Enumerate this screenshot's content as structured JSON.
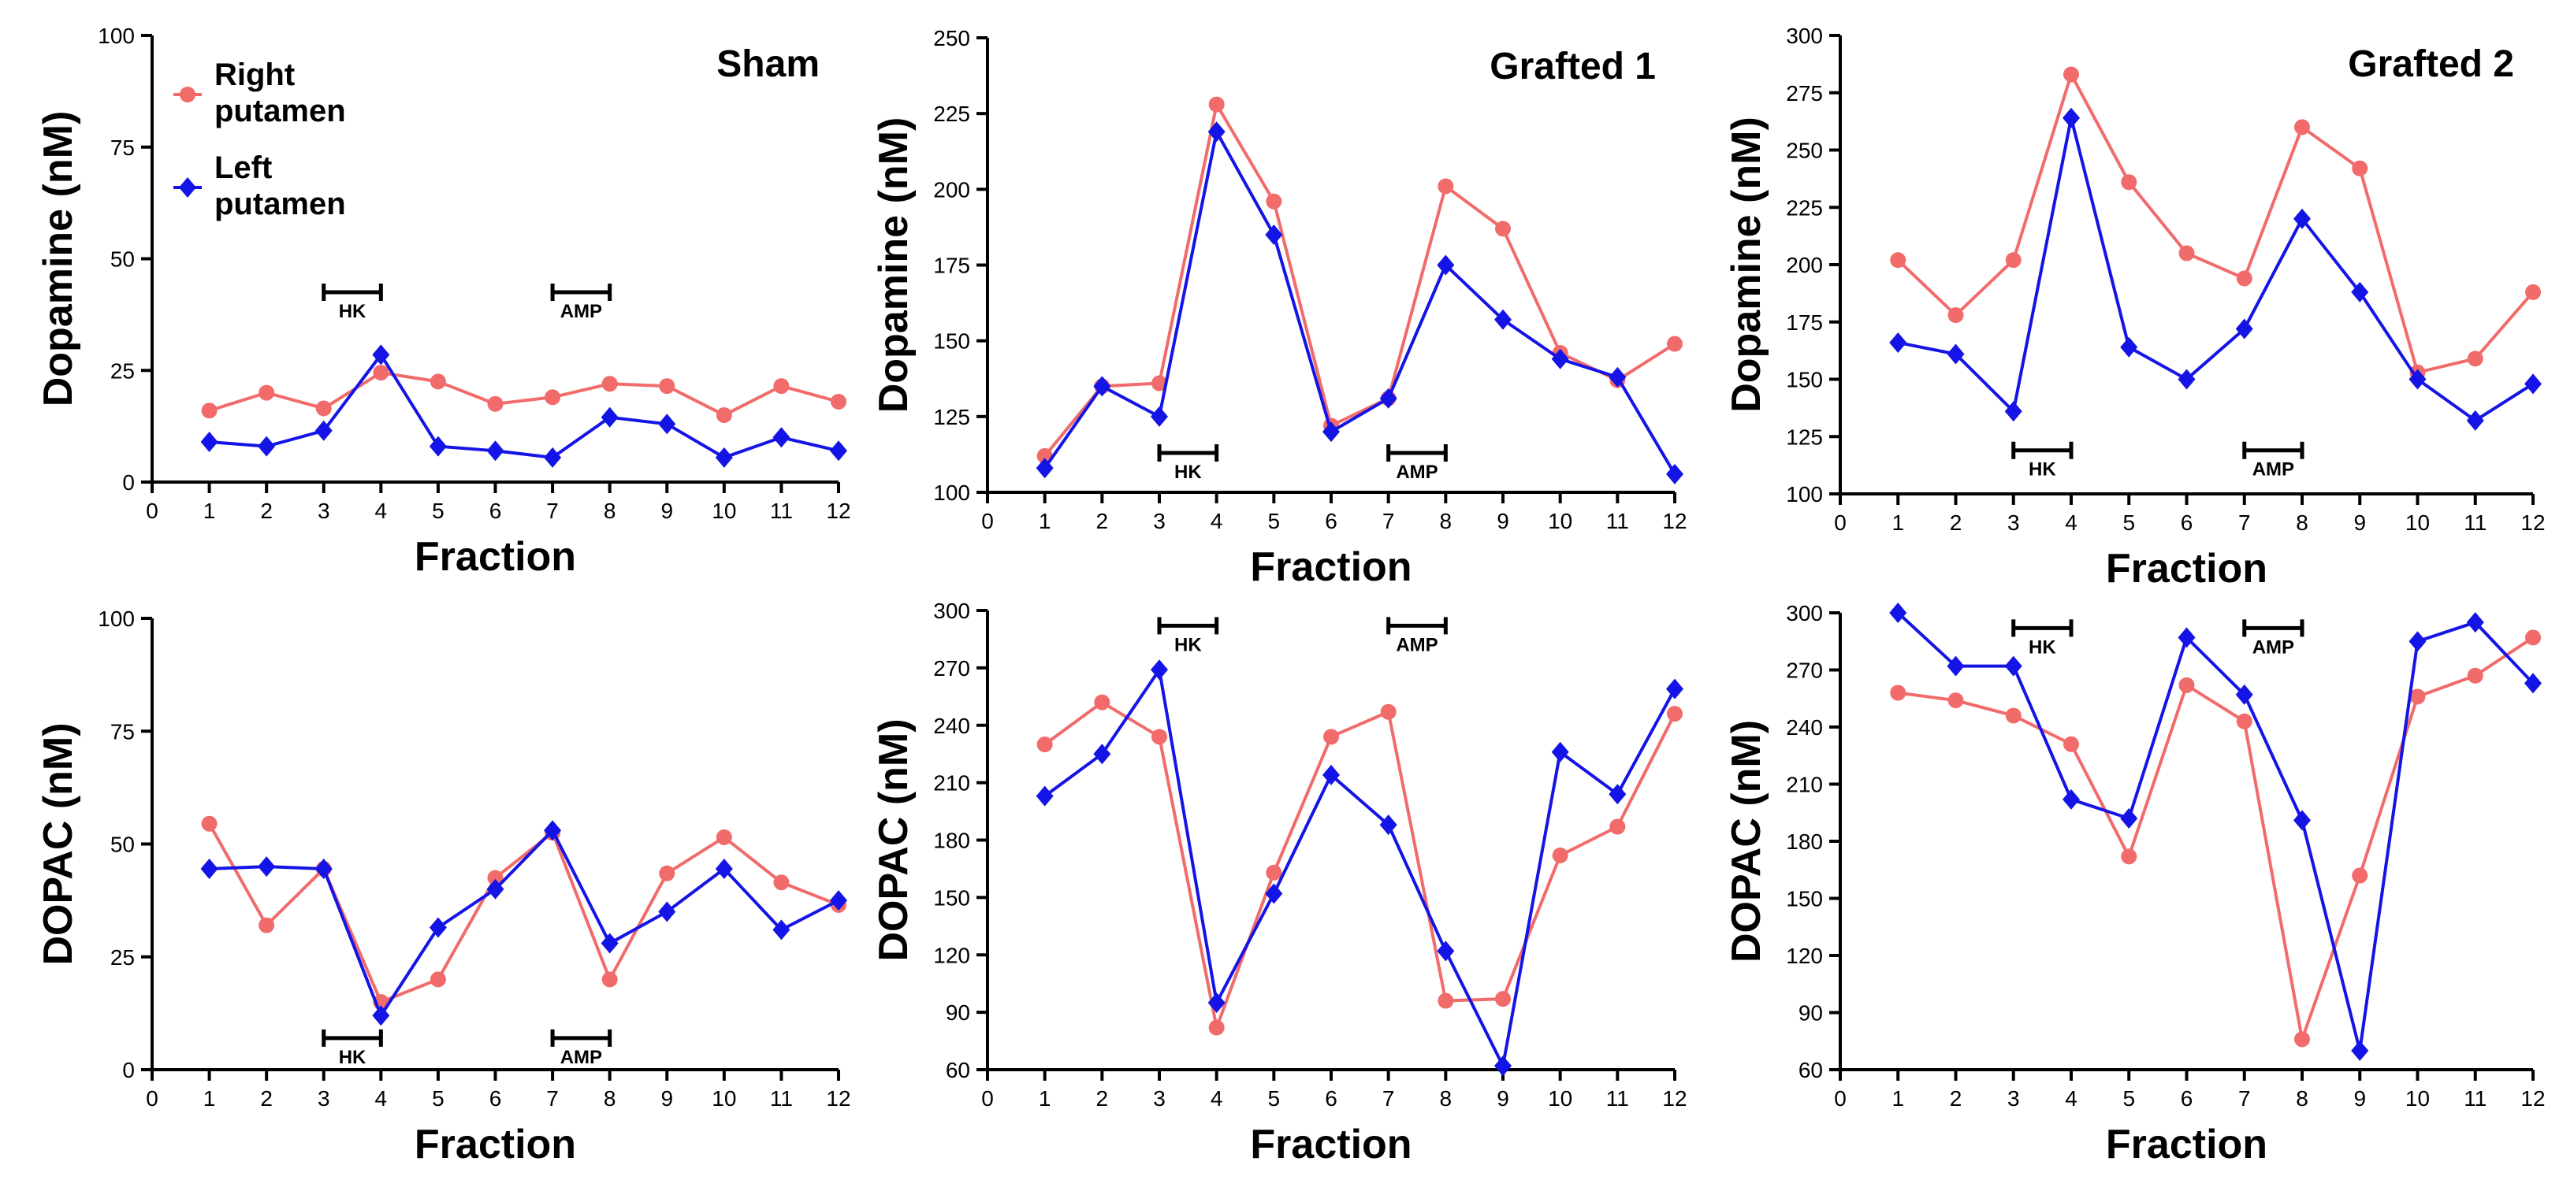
{
  "colors": {
    "right": "#f26b6b",
    "left": "#1414e6",
    "axis": "#000000"
  },
  "legend": {
    "right_label_1": "Right",
    "right_label_2": "putamen",
    "left_label_1": "Left",
    "left_label_2": "putamen"
  },
  "chart_data": [
    {
      "type": "line",
      "title": "Sham",
      "xlabel": "Fraction",
      "ylabel": "Dopamine (nM)",
      "xlim": [
        0,
        12
      ],
      "ylim": [
        0,
        100
      ],
      "xticks": [
        "0",
        "1",
        "2",
        "3",
        "4",
        "5",
        "6",
        "7",
        "8",
        "9",
        "10",
        "11",
        "12"
      ],
      "yticks": [
        "0",
        "25",
        "50",
        "75",
        "100"
      ],
      "x": [
        1,
        2,
        3,
        4,
        5,
        6,
        7,
        8,
        9,
        10,
        11,
        12
      ],
      "series": [
        {
          "name": "Right putamen",
          "values": [
            16,
            20,
            16.5,
            24.5,
            22.5,
            17.5,
            19,
            22,
            21.5,
            15,
            21.5,
            18
          ]
        },
        {
          "name": "Left putamen",
          "values": [
            9,
            8,
            11.5,
            28.5,
            8,
            7,
            5.5,
            14.5,
            13,
            5.5,
            10,
            7
          ]
        }
      ],
      "annotations": [
        {
          "label": "HK",
          "x1": 3,
          "x2": 4,
          "y": 42.5
        },
        {
          "label": "AMP",
          "x1": 7,
          "x2": 8,
          "y": 42.5
        }
      ],
      "show_legend": true
    },
    {
      "type": "line",
      "title": "Grafted 1",
      "xlabel": "Fraction",
      "ylabel": "Dopamine (nM)",
      "xlim": [
        0,
        12
      ],
      "ylim": [
        100,
        250
      ],
      "xticks": [
        "0",
        "1",
        "2",
        "3",
        "4",
        "5",
        "6",
        "7",
        "8",
        "9",
        "10",
        "11",
        "12"
      ],
      "yticks": [
        "100",
        "125",
        "150",
        "175",
        "200",
        "225",
        "250"
      ],
      "x": [
        1,
        2,
        3,
        4,
        5,
        6,
        7,
        8,
        9,
        10,
        11,
        12
      ],
      "series": [
        {
          "name": "Right putamen",
          "values": [
            112,
            135,
            136,
            228,
            196,
            122,
            131,
            201,
            187,
            146,
            137,
            149
          ]
        },
        {
          "name": "Left putamen",
          "values": [
            108,
            135,
            125,
            219,
            185,
            120,
            131,
            175,
            157,
            144,
            138,
            106
          ]
        }
      ],
      "annotations": [
        {
          "label": "HK",
          "x1": 3,
          "x2": 4,
          "y": 113
        },
        {
          "label": "AMP",
          "x1": 7,
          "x2": 8,
          "y": 113
        }
      ],
      "show_legend": false
    },
    {
      "type": "line",
      "title": "Grafted 2",
      "xlabel": "Fraction",
      "ylabel": "Dopamine (nM)",
      "xlim": [
        0,
        12
      ],
      "ylim": [
        100,
        300
      ],
      "xticks": [
        "0",
        "1",
        "2",
        "3",
        "4",
        "5",
        "6",
        "7",
        "8",
        "9",
        "10",
        "11",
        "12"
      ],
      "yticks": [
        "100",
        "125",
        "150",
        "175",
        "200",
        "225",
        "250",
        "275",
        "300"
      ],
      "x": [
        1,
        2,
        3,
        4,
        5,
        6,
        7,
        8,
        9,
        10,
        11,
        12
      ],
      "series": [
        {
          "name": "Right putamen",
          "values": [
            202,
            178,
            202,
            283,
            236,
            205,
            194,
            260,
            242,
            153,
            159,
            188
          ]
        },
        {
          "name": "Left putamen",
          "values": [
            166,
            161,
            136,
            264,
            164,
            150,
            172,
            220,
            188,
            150,
            132,
            148
          ]
        }
      ],
      "annotations": [
        {
          "label": "HK",
          "x1": 3,
          "x2": 4,
          "y": 119
        },
        {
          "label": "AMP",
          "x1": 7,
          "x2": 8,
          "y": 119
        }
      ],
      "show_legend": false
    },
    {
      "type": "line",
      "title": "",
      "xlabel": "Fraction",
      "ylabel": "DOPAC (nM)",
      "xlim": [
        0,
        12
      ],
      "ylim": [
        0,
        100
      ],
      "xticks": [
        "0",
        "1",
        "2",
        "3",
        "4",
        "5",
        "6",
        "7",
        "8",
        "9",
        "10",
        "11",
        "12"
      ],
      "yticks": [
        "0",
        "25",
        "50",
        "75",
        "100"
      ],
      "x": [
        1,
        2,
        3,
        4,
        5,
        6,
        7,
        8,
        9,
        10,
        11,
        12
      ],
      "series": [
        {
          "name": "Right putamen",
          "values": [
            54.5,
            32,
            44.5,
            15,
            20,
            42.5,
            52.5,
            20,
            43.5,
            51.5,
            41.5,
            36.5
          ]
        },
        {
          "name": "Left putamen",
          "values": [
            44.5,
            45,
            44.5,
            12,
            31.5,
            40,
            53,
            28,
            35,
            44.5,
            31,
            37.5
          ]
        }
      ],
      "annotations": [
        {
          "label": "HK",
          "x1": 3,
          "x2": 4,
          "y": 7
        },
        {
          "label": "AMP",
          "x1": 7,
          "x2": 8,
          "y": 7
        }
      ],
      "show_legend": false
    },
    {
      "type": "line",
      "title": "",
      "xlabel": "Fraction",
      "ylabel": "DOPAC (nM)",
      "xlim": [
        0,
        12
      ],
      "ylim": [
        60,
        300
      ],
      "xticks": [
        "0",
        "1",
        "2",
        "3",
        "4",
        "5",
        "6",
        "7",
        "8",
        "9",
        "10",
        "11",
        "12"
      ],
      "yticks": [
        "60",
        "90",
        "120",
        "150",
        "180",
        "210",
        "240",
        "270",
        "300"
      ],
      "x": [
        1,
        2,
        3,
        4,
        5,
        6,
        7,
        8,
        9,
        10,
        11,
        12
      ],
      "series": [
        {
          "name": "Right putamen",
          "values": [
            230,
            252,
            234,
            82,
            163,
            234,
            247,
            96,
            97,
            172,
            187,
            246
          ]
        },
        {
          "name": "Left putamen",
          "values": [
            203,
            225,
            269,
            95,
            152,
            214,
            188,
            122,
            62,
            226,
            204,
            259
          ]
        }
      ],
      "annotations": [
        {
          "label": "HK",
          "x1": 3,
          "x2": 4,
          "y": 292
        },
        {
          "label": "AMP",
          "x1": 7,
          "x2": 8,
          "y": 292
        }
      ],
      "show_legend": false
    },
    {
      "type": "line",
      "title": "",
      "xlabel": "Fraction",
      "ylabel": "DOPAC (nM)",
      "xlim": [
        0,
        12
      ],
      "ylim": [
        60,
        300
      ],
      "xticks": [
        "0",
        "1",
        "2",
        "3",
        "4",
        "5",
        "6",
        "7",
        "8",
        "9",
        "10",
        "11",
        "12"
      ],
      "yticks": [
        "60",
        "90",
        "120",
        "150",
        "180",
        "210",
        "240",
        "270",
        "300"
      ],
      "x": [
        1,
        2,
        3,
        4,
        5,
        6,
        7,
        8,
        9,
        10,
        11,
        12
      ],
      "series": [
        {
          "name": "Right putamen",
          "values": [
            258,
            254,
            246,
            231,
            172,
            262,
            243,
            76,
            162,
            256,
            267,
            287
          ]
        },
        {
          "name": "Left putamen",
          "values": [
            300,
            272,
            272,
            202,
            192,
            287,
            257,
            191,
            70,
            285,
            295,
            263
          ]
        }
      ],
      "annotations": [
        {
          "label": "HK",
          "x1": 3,
          "x2": 4,
          "y": 292
        },
        {
          "label": "AMP",
          "x1": 7,
          "x2": 8,
          "y": 292
        }
      ],
      "show_legend": false
    }
  ]
}
